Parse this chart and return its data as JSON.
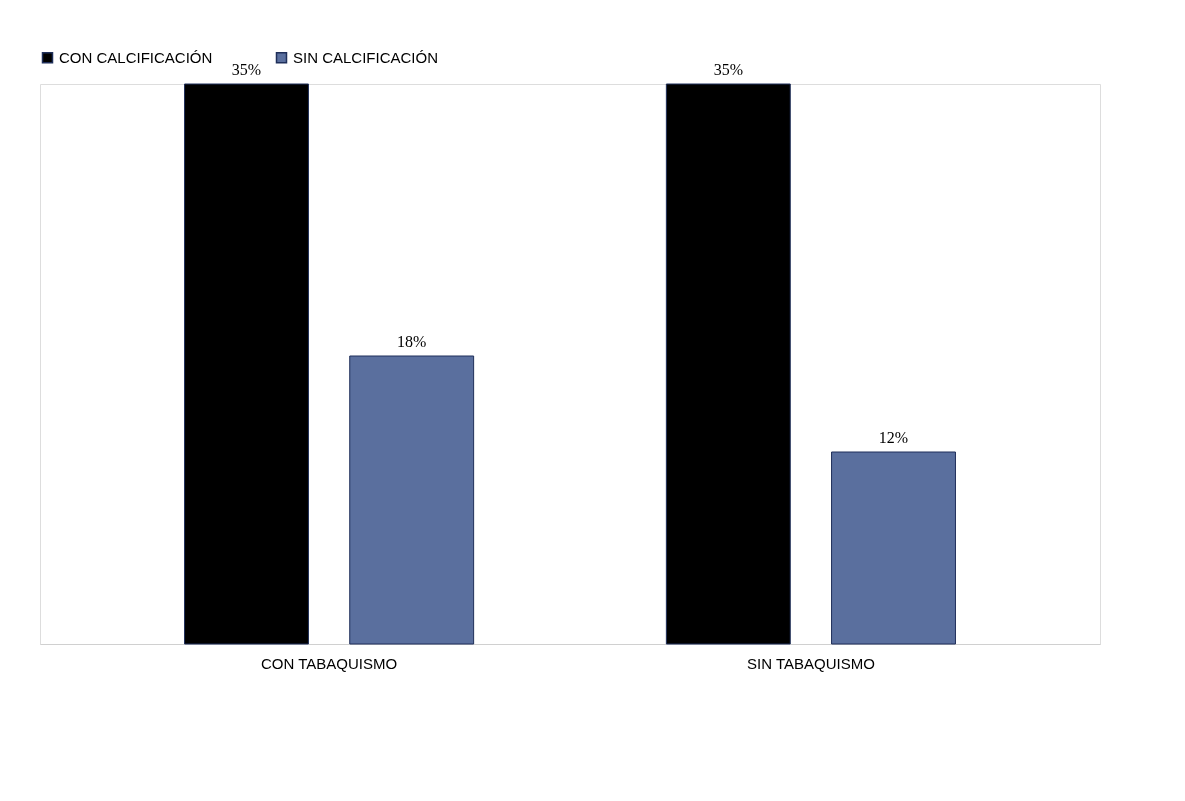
{
  "chart_data": {
    "type": "bar",
    "categories": [
      "CON TABAQUISMO",
      "SIN TABAQUISMO"
    ],
    "series": [
      {
        "name": "CON CALCIFICACIÓN",
        "color": "#000000",
        "values": [
          35,
          35
        ],
        "value_labels": [
          "35%",
          "35%"
        ]
      },
      {
        "name": "SIN CALCIFICACIÓN",
        "color": "#5a6f9e",
        "values": [
          18,
          12
        ],
        "value_labels": [
          "18%",
          "12%"
        ]
      }
    ],
    "legend": "top",
    "grid": false,
    "tick_labels": "x"
  }
}
